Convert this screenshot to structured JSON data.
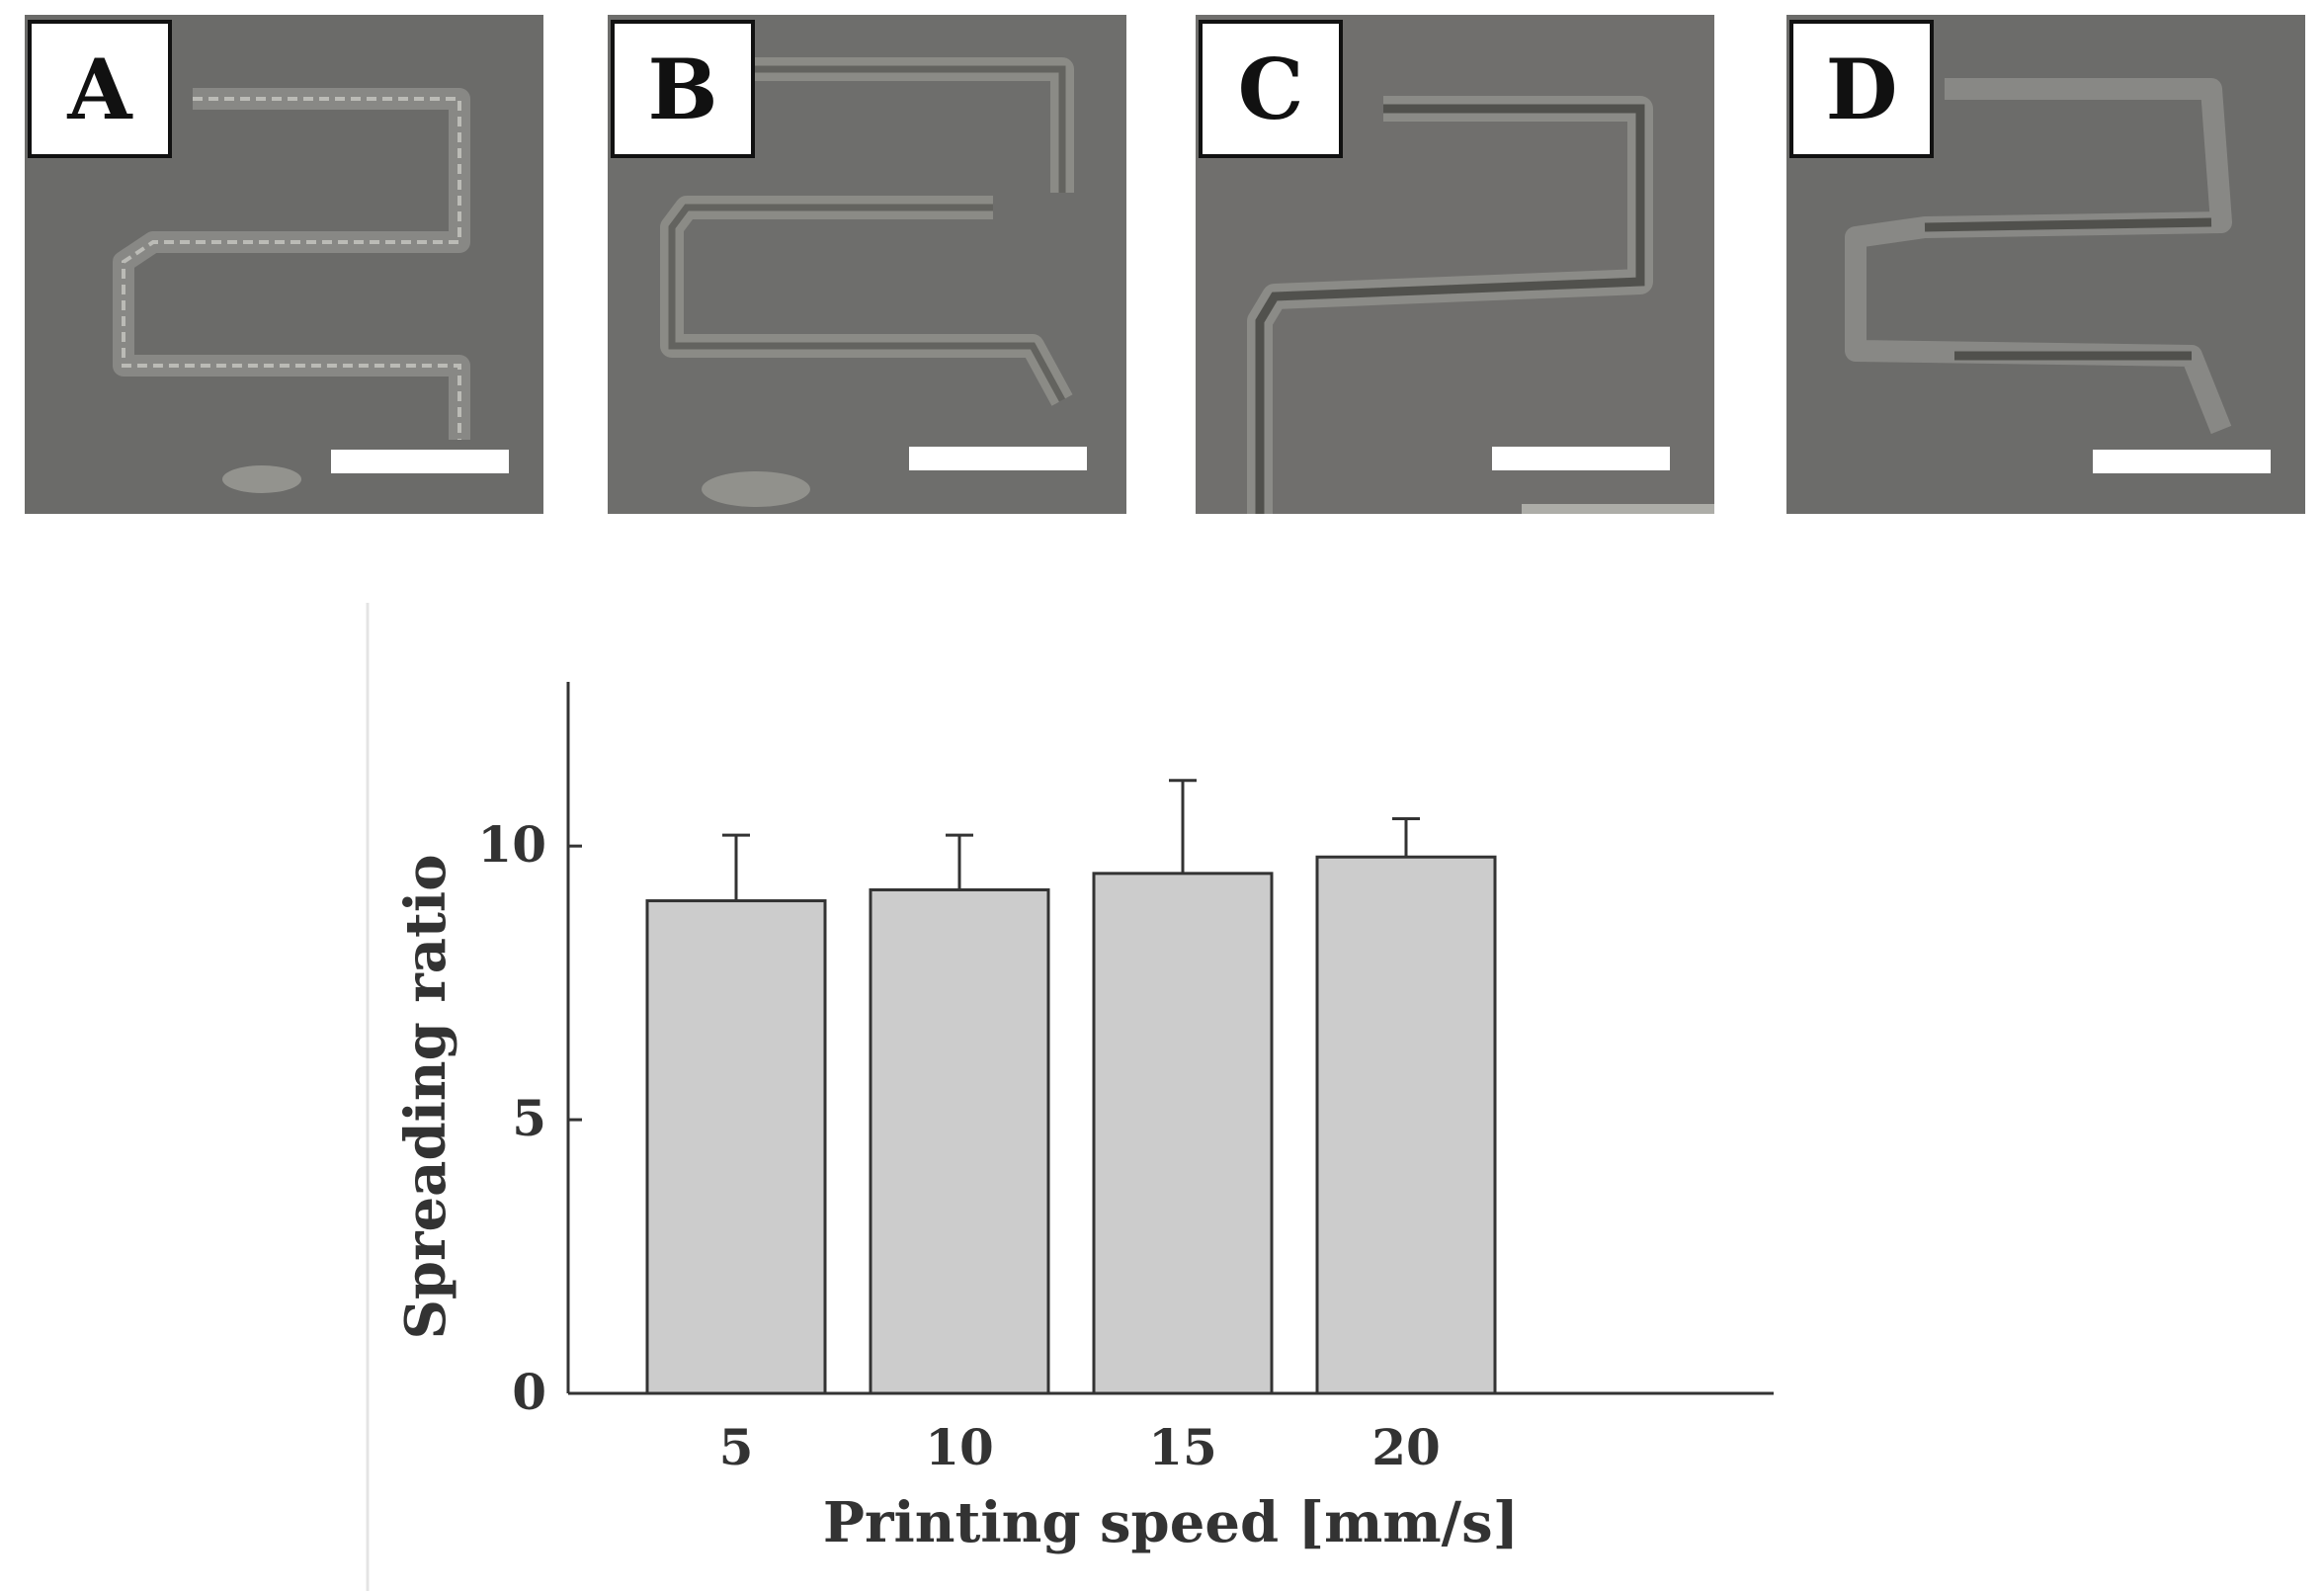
{
  "panels": [
    {
      "label": "A",
      "color": "#6b6b69"
    },
    {
      "label": "B",
      "color": "#6e6e6c"
    },
    {
      "label": "C",
      "color": "#706f6d"
    },
    {
      "label": "D",
      "color": "#6c6c6a"
    }
  ],
  "chart_data": {
    "type": "bar",
    "title": "",
    "xlabel": "Printing speed [mm/s]",
    "ylabel": "Spreading ratio",
    "categories": [
      "5",
      "10",
      "15",
      "20"
    ],
    "values": [
      9.0,
      9.2,
      9.5,
      9.8
    ],
    "error": [
      1.2,
      1.0,
      1.7,
      0.7
    ],
    "ylim": [
      0,
      13
    ],
    "yticks": [
      0,
      5,
      10
    ],
    "ytick_labels": [
      "0",
      "5",
      "10"
    ],
    "bar_color": "#cccccc",
    "grid": false,
    "legend": "none"
  }
}
